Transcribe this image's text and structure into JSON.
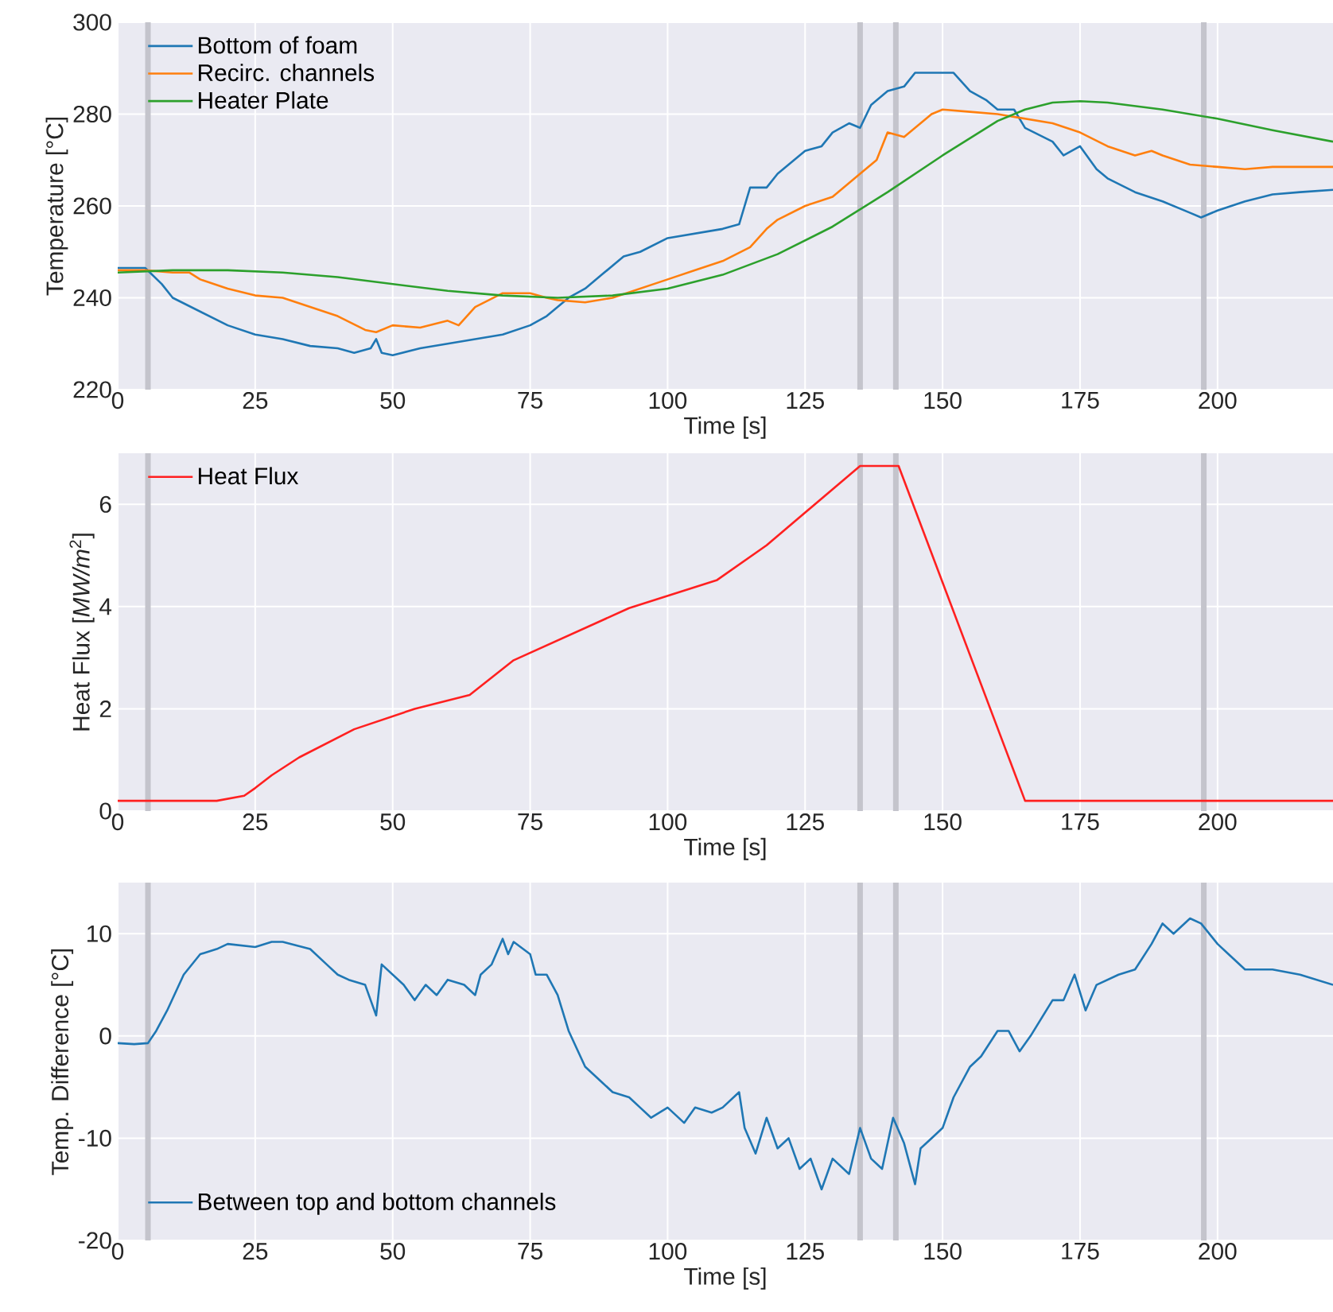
{
  "chart_data": [
    {
      "type": "line",
      "xlabel": "Time [s]",
      "ylabel": "Temperature [°C]",
      "xlim": [
        0,
        221
      ],
      "ylim": [
        220,
        300
      ],
      "xticks": [
        0,
        25,
        50,
        75,
        100,
        125,
        150,
        175,
        200
      ],
      "yticks": [
        220,
        240,
        260,
        280,
        300
      ],
      "grid": true,
      "legend": "top left",
      "marker": "none",
      "line_style": "solid",
      "ref_lines": [
        {
          "axis": "x",
          "value": 5.5,
          "color": "#c4c4cc"
        },
        {
          "axis": "x",
          "value": 135,
          "color": "#c4c4cc"
        },
        {
          "axis": "x",
          "value": 141.5,
          "color": "#c4c4cc"
        },
        {
          "axis": "x",
          "value": 197.5,
          "color": "#c4c4cc"
        }
      ],
      "series": [
        {
          "name": "Bottom of foam",
          "color": "#1f77b4",
          "x": [
            0,
            5,
            8,
            10,
            15,
            20,
            25,
            30,
            35,
            40,
            43,
            46,
            47,
            48,
            50,
            55,
            60,
            65,
            70,
            75,
            78,
            82,
            85,
            88,
            92,
            95,
            100,
            105,
            110,
            113,
            115,
            118,
            120,
            125,
            128,
            130,
            133,
            135,
            137,
            140,
            143,
            145,
            148,
            150,
            152,
            155,
            158,
            160,
            163,
            165,
            170,
            172,
            175,
            178,
            180,
            185,
            190,
            195,
            197,
            200,
            205,
            210,
            215,
            221
          ],
          "values": [
            246.5,
            246.5,
            243,
            240,
            237,
            234,
            232,
            231,
            229.5,
            229,
            228,
            229,
            231,
            228,
            227.5,
            229,
            230,
            231,
            232,
            234,
            236,
            240,
            242,
            245,
            249,
            250,
            253,
            254,
            255,
            256,
            264,
            264,
            267,
            272,
            273,
            276,
            278,
            277,
            282,
            285,
            286,
            289,
            289,
            289,
            289,
            285,
            283,
            281,
            281,
            277,
            274,
            271,
            273,
            268,
            266,
            263,
            261,
            258.5,
            257.5,
            259,
            261,
            262.5,
            263,
            263.5
          ]
        },
        {
          "name": "Recirc. channels",
          "color": "#ff7f0e",
          "x": [
            0,
            5,
            10,
            13,
            15,
            20,
            25,
            30,
            35,
            40,
            45,
            47,
            50,
            55,
            60,
            62,
            65,
            70,
            75,
            78,
            80,
            85,
            90,
            95,
            100,
            105,
            110,
            115,
            118,
            120,
            125,
            130,
            135,
            138,
            140,
            143,
            145,
            148,
            150,
            155,
            160,
            165,
            170,
            175,
            180,
            185,
            188,
            190,
            195,
            200,
            205,
            210,
            221
          ],
          "values": [
            246,
            246,
            245.5,
            245.5,
            244,
            242,
            240.5,
            240,
            238,
            236,
            233,
            232.5,
            234,
            233.5,
            235,
            234,
            238,
            241,
            241,
            240,
            239.5,
            239,
            240,
            242,
            244,
            246,
            248,
            251,
            255,
            257,
            260,
            262,
            267,
            270,
            276,
            275,
            277,
            280,
            281,
            280.5,
            280,
            279,
            278,
            276,
            273,
            271,
            272,
            271,
            269,
            268.5,
            268,
            268.5,
            268.5
          ]
        },
        {
          "name": "Heater Plate",
          "color": "#2ca02c",
          "x": [
            0,
            10,
            20,
            30,
            40,
            50,
            60,
            70,
            80,
            90,
            100,
            110,
            120,
            130,
            140,
            150,
            160,
            165,
            170,
            175,
            180,
            190,
            200,
            210,
            221
          ],
          "values": [
            245.5,
            246,
            246,
            245.5,
            244.5,
            243,
            241.5,
            240.5,
            240,
            240.5,
            242,
            245,
            249.5,
            255.5,
            263,
            271,
            278.5,
            281,
            282.5,
            282.8,
            282.5,
            281,
            279,
            276.5,
            274
          ]
        }
      ]
    },
    {
      "type": "line",
      "xlabel": "Time [s]",
      "ylabel": "Heat Flux [*MW/m*$^{2}$]",
      "xlim": [
        0,
        221
      ],
      "ylim": [
        0,
        7
      ],
      "xticks": [
        0,
        25,
        50,
        75,
        100,
        125,
        150,
        175,
        200
      ],
      "yticks": [
        0,
        2,
        4,
        6
      ],
      "grid": true,
      "legend": "top left",
      "marker": "none",
      "line_style": "solid",
      "ref_lines": [
        {
          "axis": "x",
          "value": 5.5,
          "color": "#c4c4cc"
        },
        {
          "axis": "x",
          "value": 135,
          "color": "#c4c4cc"
        },
        {
          "axis": "x",
          "value": 141.5,
          "color": "#c4c4cc"
        },
        {
          "axis": "x",
          "value": 197.5,
          "color": "#c4c4cc"
        }
      ],
      "series": [
        {
          "name": "Heat Flux",
          "color": "#ff2020",
          "x": [
            0,
            18,
            23,
            25,
            28,
            33,
            43,
            54,
            64,
            72,
            93,
            109,
            118,
            135,
            142,
            165,
            221
          ],
          "values": [
            0.2,
            0.2,
            0.3,
            0.45,
            0.7,
            1.05,
            1.6,
            2.0,
            2.27,
            2.95,
            3.97,
            4.52,
            5.2,
            6.75,
            6.75,
            0.2,
            0.2
          ]
        }
      ]
    },
    {
      "type": "line",
      "xlabel": "Time [s]",
      "ylabel": "Temp. Difference [°C]",
      "xlim": [
        0,
        221
      ],
      "ylim": [
        -20,
        15
      ],
      "xticks": [
        0,
        25,
        50,
        75,
        100,
        125,
        150,
        175,
        200
      ],
      "yticks": [
        -20,
        -10,
        0,
        10
      ],
      "grid": true,
      "legend": "bottom left",
      "marker": "none",
      "line_style": "solid",
      "ref_lines": [
        {
          "axis": "x",
          "value": 5.5,
          "color": "#c4c4cc"
        },
        {
          "axis": "x",
          "value": 135,
          "color": "#c4c4cc"
        },
        {
          "axis": "x",
          "value": 141.5,
          "color": "#c4c4cc"
        },
        {
          "axis": "x",
          "value": 197.5,
          "color": "#c4c4cc"
        }
      ],
      "series": [
        {
          "name": "Between top and bottom channels",
          "color": "#1f77b4",
          "x": [
            0,
            3,
            5.5,
            7,
            9,
            12,
            15,
            18,
            20,
            25,
            28,
            30,
            35,
            38,
            40,
            42,
            45,
            47,
            48,
            50,
            52,
            54,
            56,
            58,
            60,
            63,
            65,
            66,
            68,
            70,
            71,
            72,
            75,
            76,
            78,
            80,
            82,
            85,
            88,
            90,
            93,
            95,
            97,
            100,
            103,
            105,
            108,
            110,
            113,
            114,
            116,
            118,
            120,
            122,
            124,
            126,
            128,
            130,
            133,
            135,
            137,
            139,
            141,
            143,
            145,
            146,
            148,
            150,
            152,
            155,
            157,
            160,
            162,
            164,
            166,
            170,
            172,
            174,
            176,
            178,
            180,
            182,
            185,
            188,
            190,
            192,
            195,
            197,
            200,
            202,
            205,
            210,
            215,
            221
          ],
          "values": [
            -0.7,
            -0.8,
            -0.7,
            0.5,
            2.5,
            6,
            8,
            8.5,
            9,
            8.7,
            9.2,
            9.2,
            8.5,
            7,
            6,
            5.5,
            5,
            2,
            7,
            6,
            5,
            3.5,
            5,
            4,
            5.5,
            5,
            4,
            6,
            7,
            9.5,
            8,
            9.2,
            8,
            6,
            6,
            4,
            0.5,
            -3,
            -4.5,
            -5.5,
            -6,
            -7,
            -8,
            -7,
            -8.5,
            -7,
            -7.5,
            -7,
            -5.5,
            -9,
            -11.5,
            -8,
            -11,
            -10,
            -13,
            -12,
            -15,
            -12,
            -13.5,
            -9,
            -12,
            -13,
            -8,
            -10.5,
            -14.5,
            -11,
            -10,
            -9,
            -6,
            -3,
            -2,
            0.5,
            0.5,
            -1.5,
            0,
            3.5,
            3.5,
            6,
            2.5,
            5,
            5.5,
            6,
            6.5,
            9,
            11,
            10,
            11.5,
            11,
            9,
            8,
            6.5,
            6.5,
            6,
            5
          ]
        }
      ]
    }
  ]
}
